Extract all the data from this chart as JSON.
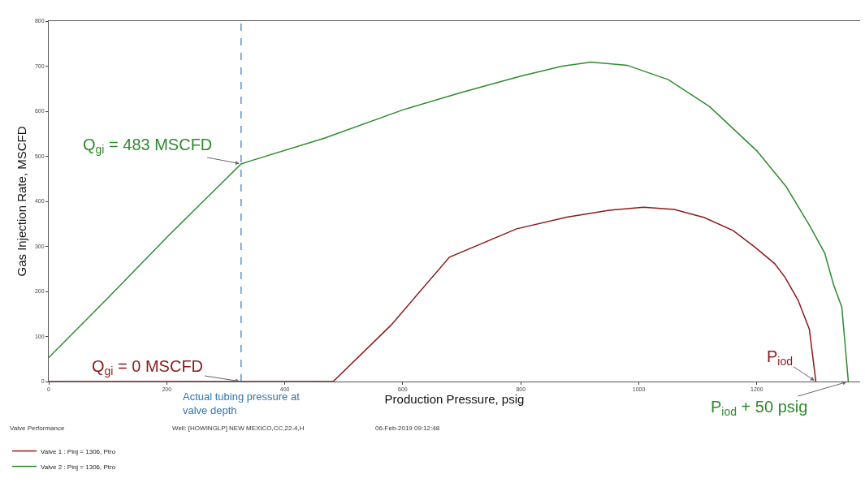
{
  "chart_data": {
    "type": "line",
    "xlabel": "Production Pressure, psig",
    "ylabel": "Gas Injection Rate, MSCFD",
    "xlim": [
      0,
      1375
    ],
    "xticks": [
      0,
      200,
      400,
      600,
      800,
      1000,
      1200
    ],
    "ylim": [
      0,
      800
    ],
    "yticks": [
      0,
      100,
      200,
      300,
      400,
      500,
      600,
      700,
      800
    ],
    "grid": false,
    "legend": "bottom left",
    "marker": "none",
    "line_style": "solid",
    "series": [
      {
        "name": "Valve 1 : Pinj = 1306, Ptro",
        "color": "#8b1a1a",
        "x": [
          0,
          100,
          200,
          300,
          400,
          482,
          580,
          679,
          793,
          878,
          950,
          1008,
          1060,
          1111,
          1160,
          1197,
          1230,
          1248,
          1270,
          1289,
          1300
        ],
        "values": [
          0,
          0,
          0,
          0,
          0,
          0,
          125,
          276,
          339,
          365,
          380,
          387,
          382,
          364,
          335,
          298,
          262,
          231,
          180,
          116,
          0
        ]
      },
      {
        "name": "Valve 2 : Pinj = 1306, Ptro",
        "color": "#2e8b2e",
        "x": [
          0,
          100,
          200,
          326,
          340,
          467,
          600,
          700,
          800,
          870,
          919,
          980,
          1050,
          1120,
          1200,
          1250,
          1289,
          1315,
          1330,
          1344,
          1355
        ],
        "values": [
          53,
          185,
          320,
          483,
          489,
          540,
          603,
          642,
          678,
          700,
          709,
          702,
          670,
          610,
          512,
          432,
          347,
          285,
          215,
          165,
          0
        ]
      }
    ],
    "ref_lines": [
      {
        "axis": "x",
        "value": 326,
        "label": "Actual tubing pressure at valve depth",
        "color": "#2e75b6",
        "line_style": "dashed"
      }
    ],
    "annotations": [
      {
        "text": "Q$_{gi}$ = 483 MSCFD",
        "x": 326,
        "y": 483
      },
      {
        "text": "Q$_{gi}$ = 0 MSCFD",
        "x": 326,
        "y": 0
      },
      {
        "text": "P$_{iod}$",
        "x": 1300,
        "y": 0
      },
      {
        "text": "P$_{iod}$ + 50 psig",
        "x": 1355,
        "y": 0
      },
      "Valve Performance",
      "Well: [HOWINGLP] NEW MEXICO,CC,22-4,H",
      "06-Feb-2019 09:12:48"
    ]
  }
}
